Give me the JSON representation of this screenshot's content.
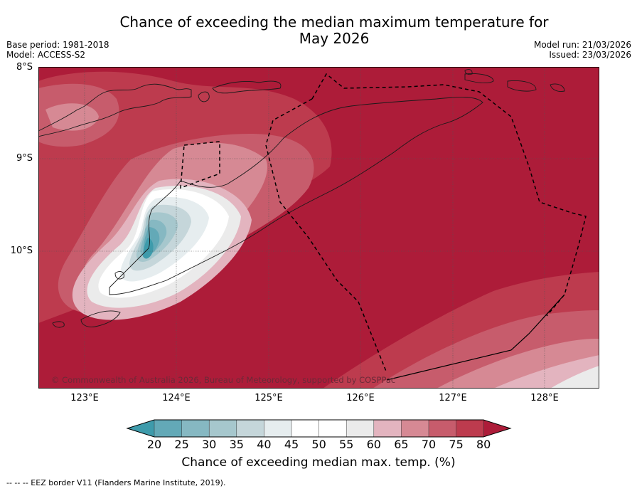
{
  "title": {
    "line1": "Chance of exceeding the median maximum temperature for",
    "line2": "May 2026"
  },
  "meta": {
    "base_period": "Base period: 1981-2018",
    "model": "Model: ACCESS-S2",
    "model_run": "Model run: 21/03/2026",
    "issued": "Issued: 23/03/2026"
  },
  "map": {
    "lat_labels": [
      "8°S",
      "9°S",
      "10°S"
    ],
    "lon_labels": [
      "123°E",
      "124°E",
      "125°E",
      "126°E",
      "127°E",
      "128°E"
    ],
    "credit": "© Commonwealth of Australia 2026, Bureau of Meteorology, supported by COSPPac",
    "colors": {
      "land": "#1a1a1a",
      "eez": "#000000",
      "grid": "#555555"
    }
  },
  "colorbar": {
    "ticks": [
      "20",
      "25",
      "30",
      "35",
      "40",
      "45",
      "50",
      "55",
      "60",
      "65",
      "70",
      "75",
      "80"
    ],
    "label": "Chance of exceeding median max. temp. (%)",
    "colors": [
      "#3e9bab",
      "#63a9b7",
      "#86b8c2",
      "#a6c7cd",
      "#c5d6da",
      "#e6edef",
      "#ffffff",
      "#ffffff",
      "#ebebeb",
      "#e3b4bf",
      "#d68994",
      "#c75c6c",
      "#bd3b4e",
      "#ad1c39"
    ]
  },
  "footer": "--  --  -- EEZ border V11 (Flanders Marine Institute, 2019)."
}
